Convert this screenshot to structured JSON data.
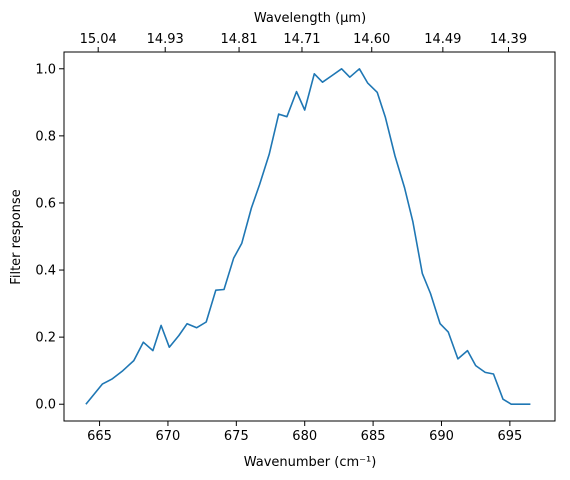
{
  "chart_data": {
    "type": "line",
    "xlabel": "Wavenumber (cm⁻¹)",
    "ylabel": "Filter response",
    "top_xlabel": "Wavelength (μm)",
    "xlim": [
      662.4,
      698.3
    ],
    "ylim": [
      -0.05,
      1.05
    ],
    "x_ticks": [
      665,
      670,
      675,
      680,
      685,
      690,
      695
    ],
    "y_ticks": [
      0.0,
      0.2,
      0.4,
      0.6,
      0.8,
      1.0
    ],
    "y_tick_labels": [
      "0.0",
      "0.2",
      "0.4",
      "0.6",
      "0.8",
      "1.0"
    ],
    "top_ticks": [
      {
        "label": "15.04",
        "wavenumber": 664.9
      },
      {
        "label": "14.93",
        "wavenumber": 669.8
      },
      {
        "label": "14.81",
        "wavenumber": 675.2
      },
      {
        "label": "14.71",
        "wavenumber": 679.8
      },
      {
        "label": "14.60",
        "wavenumber": 684.9
      },
      {
        "label": "14.49",
        "wavenumber": 690.1
      },
      {
        "label": "14.39",
        "wavenumber": 694.9
      }
    ],
    "grid": false,
    "series": [
      {
        "color": "#1f77b4",
        "x": [
          664.0,
          665.2,
          665.9,
          666.7,
          667.5,
          668.2,
          668.9,
          669.5,
          670.1,
          670.8,
          671.4,
          672.1,
          672.8,
          673.5,
          674.1,
          674.8,
          675.4,
          676.1,
          676.7,
          677.4,
          678.1,
          678.7,
          679.4,
          680.0,
          680.7,
          681.3,
          682.0,
          682.7,
          683.3,
          684.0,
          684.6,
          685.3,
          685.9,
          686.6,
          687.3,
          687.9,
          688.6,
          689.2,
          689.9,
          690.5,
          691.2,
          691.9,
          692.5,
          693.2,
          693.8,
          694.5,
          695.1,
          695.8,
          696.5
        ],
        "y": [
          0.0,
          0.06,
          0.075,
          0.1,
          0.13,
          0.185,
          0.16,
          0.235,
          0.17,
          0.205,
          0.24,
          0.228,
          0.245,
          0.34,
          0.342,
          0.435,
          0.48,
          0.585,
          0.655,
          0.745,
          0.865,
          0.857,
          0.932,
          0.877,
          0.985,
          0.96,
          0.98,
          1.0,
          0.975,
          1.0,
          0.958,
          0.93,
          0.855,
          0.74,
          0.645,
          0.545,
          0.39,
          0.33,
          0.24,
          0.215,
          0.135,
          0.16,
          0.115,
          0.095,
          0.09,
          0.015,
          0.0,
          0.0,
          0.0
        ]
      }
    ]
  }
}
